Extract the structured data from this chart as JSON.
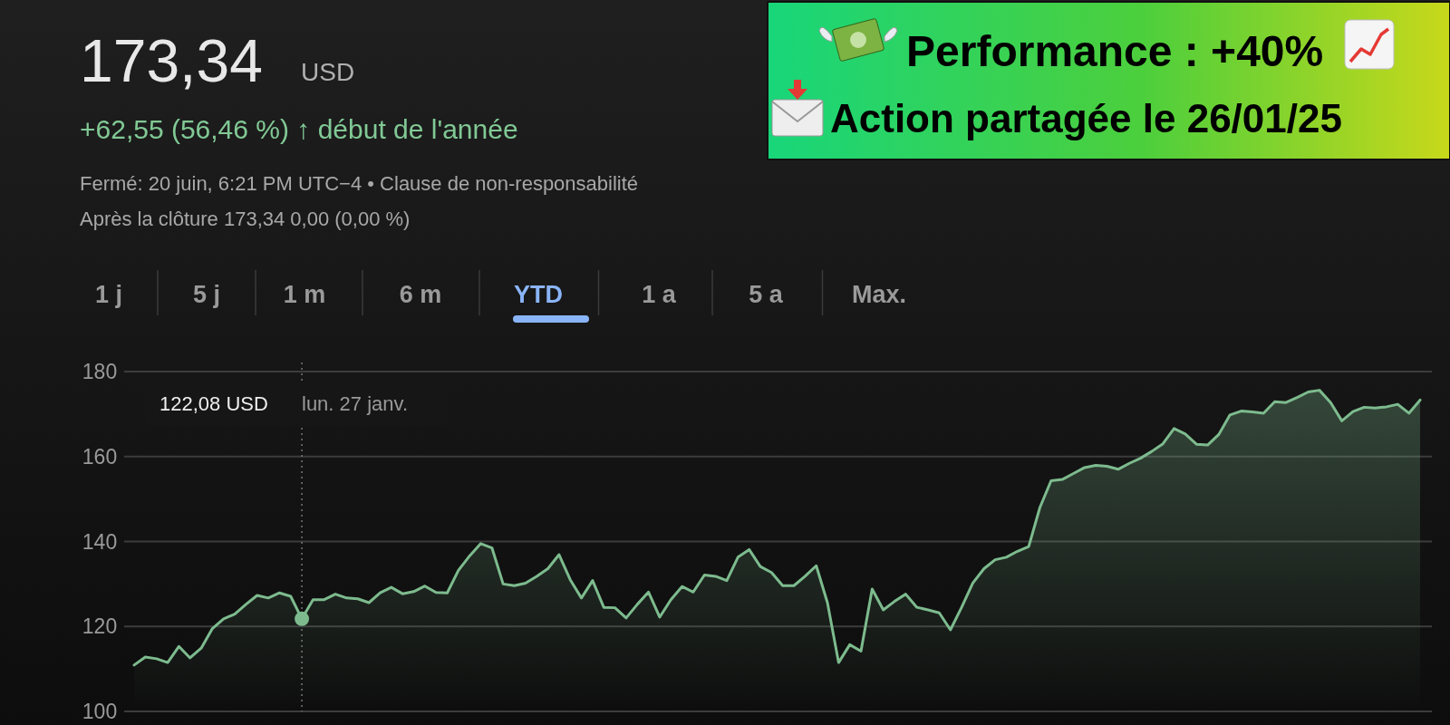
{
  "chart_data": {
    "type": "area",
    "title": "173,34",
    "categories": [
      null,
      null,
      null,
      null,
      null,
      null,
      null,
      null,
      null,
      null,
      null,
      null,
      null,
      null,
      null,
      null,
      null,
      null,
      null,
      null,
      null,
      null,
      null,
      null,
      null,
      null,
      null,
      null,
      null,
      null,
      null,
      null,
      null,
      null,
      null,
      null,
      null,
      null,
      null,
      null,
      null,
      null,
      null,
      null,
      null,
      null,
      null,
      null,
      null,
      null,
      null,
      null,
      null,
      null,
      null,
      null,
      null,
      null,
      null,
      null,
      null,
      null,
      null,
      null,
      null,
      null,
      null,
      null,
      null,
      null,
      null,
      null,
      null,
      null,
      null,
      null,
      null,
      null,
      null,
      null,
      null,
      null,
      null,
      null,
      null,
      null,
      null,
      null,
      null,
      null,
      null,
      null,
      null,
      null,
      null,
      null,
      null,
      null,
      null,
      null,
      null,
      null,
      null,
      null,
      null,
      null,
      null,
      null,
      null,
      null,
      null,
      null,
      null,
      null,
      null,
      null
    ],
    "series": [
      {
        "color": "#7dbb8e",
        "values": [
          110.9,
          112.8,
          112.4,
          111.5,
          115.3,
          112.6,
          114.9,
          119.5,
          121.8,
          122.9,
          125.2,
          127.3,
          126.7,
          127.9,
          127.1,
          121.8,
          126.3,
          126.3,
          127.6,
          126.7,
          126.5,
          125.6,
          127.9,
          129.2,
          127.7,
          128.2,
          129.5,
          128.0,
          127.9,
          133.2,
          136.6,
          139.5,
          138.5,
          130.0,
          129.6,
          130.2,
          131.8,
          133.6,
          136.9,
          131.0,
          126.7,
          130.8,
          124.5,
          124.4,
          122.0,
          125.2,
          128.1,
          122.2,
          126.3,
          129.4,
          128.1,
          132.1,
          131.8,
          130.8,
          136.3,
          138.1,
          134.1,
          132.7,
          129.6,
          129.6,
          131.8,
          134.3,
          125.6,
          111.5,
          115.7,
          114.2,
          128.8,
          123.9,
          125.9,
          127.6,
          124.5,
          123.9,
          123.2,
          119.2,
          124.5,
          130.2,
          133.6,
          135.7,
          136.3,
          137.7,
          138.8,
          148.0,
          154.3,
          154.6,
          156.0,
          157.4,
          157.9,
          157.7,
          157.0,
          158.4,
          159.6,
          161.2,
          163.0,
          166.6,
          165.3,
          162.9,
          162.7,
          165.2,
          169.8,
          170.7,
          170.5,
          170.2,
          172.9,
          172.7,
          173.9,
          175.2,
          175.6,
          172.7,
          168.4,
          170.6,
          171.6,
          171.4,
          171.7,
          172.3,
          170.2,
          173.3
        ]
      }
    ],
    "ylim": [
      100,
      180
    ],
    "yticks": [
      100,
      120,
      140,
      160,
      180
    ],
    "grid": "y",
    "annotations": [
      "USD",
      "+62,55 (56,46 %) ↑ début de l'année",
      "Fermé: 20 juin, 6:21 PM UTC−4 • Clause de non-responsabilité",
      "Après la clôture 173,34 0,00 (0,00 %)",
      "1 j",
      "5 j",
      "1 m",
      "6 m",
      "YTD",
      "1 a",
      "5 a",
      "Max.",
      "Performance : +40%",
      "Action partagée le 26/01/25",
      "122,08 USD",
      "lun. 27 janv."
    ]
  }
}
